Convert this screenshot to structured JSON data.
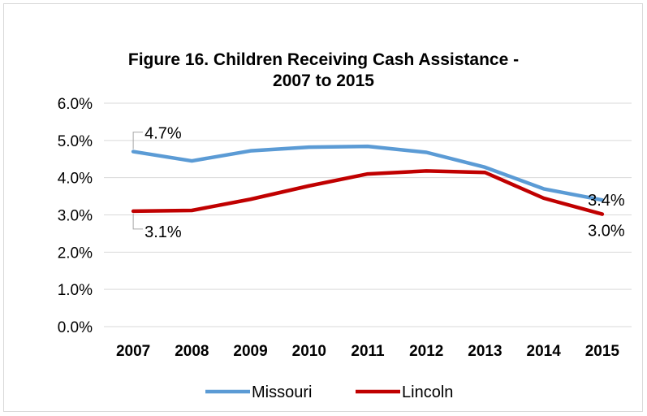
{
  "chart_data": {
    "type": "line",
    "title_line1": "Figure 16. Children Receiving Cash Assistance -",
    "title_line2": "2007 to 2015",
    "categories": [
      "2007",
      "2008",
      "2009",
      "2010",
      "2011",
      "2012",
      "2013",
      "2014",
      "2015"
    ],
    "ylim": [
      0,
      6
    ],
    "yticks": [
      "0.0%",
      "1.0%",
      "2.0%",
      "3.0%",
      "4.0%",
      "5.0%",
      "6.0%"
    ],
    "grid": true,
    "legend_position": "bottom",
    "series": [
      {
        "name": "Missouri",
        "color": "#5B9BD5",
        "values": [
          4.7,
          4.45,
          4.72,
          4.82,
          4.84,
          4.68,
          4.28,
          3.7,
          3.4
        ],
        "first_label": "4.7%",
        "last_label": "3.4%"
      },
      {
        "name": "Lincoln",
        "color": "#C00000",
        "values": [
          3.1,
          3.12,
          3.42,
          3.78,
          4.1,
          4.18,
          4.14,
          3.45,
          3.02
        ],
        "first_label": "3.1%",
        "last_label": "3.0%"
      }
    ]
  }
}
